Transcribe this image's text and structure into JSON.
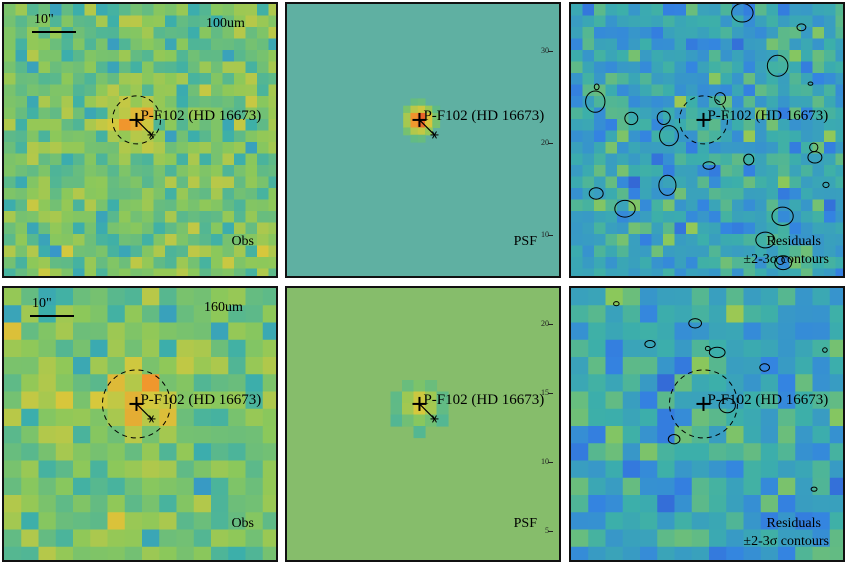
{
  "panels": [
    {
      "row": 0,
      "col": 0,
      "kind": "obs",
      "band": "100um",
      "scale": "10\"",
      "corner_label": "Obs",
      "corner_label2": "",
      "source_label": "P-F102 (HD 16673)"
    },
    {
      "row": 0,
      "col": 1,
      "kind": "psf",
      "band": "",
      "scale": "",
      "corner_label": "PSF",
      "corner_label2": "",
      "source_label": "P-F102 (HD 16673)"
    },
    {
      "row": 0,
      "col": 2,
      "kind": "res",
      "band": "",
      "scale": "",
      "corner_label": "Residuals",
      "corner_label2": "±2-3σ contours",
      "source_label": "P-F102 (HD 16673)"
    },
    {
      "row": 1,
      "col": 0,
      "kind": "obs",
      "band": "160um",
      "scale": "10\"",
      "corner_label": "Obs",
      "corner_label2": "",
      "source_label": "P-F102 (HD 16673)"
    },
    {
      "row": 1,
      "col": 1,
      "kind": "psf",
      "band": "",
      "scale": "",
      "corner_label": "PSF",
      "corner_label2": "",
      "source_label": "P-F102 (HD 16673)"
    },
    {
      "row": 1,
      "col": 2,
      "kind": "res",
      "band": "",
      "scale": "",
      "corner_label": "Residuals",
      "corner_label2": "±2-3σ contours",
      "source_label": "P-F102 (HD 16673)"
    }
  ],
  "psf_ticks_top": [
    "30",
    "20",
    "10"
  ],
  "psf_ticks_bottom": [
    "20",
    "15",
    "10",
    "5"
  ],
  "colors": {
    "frame": "#111111",
    "text": "#000000"
  }
}
